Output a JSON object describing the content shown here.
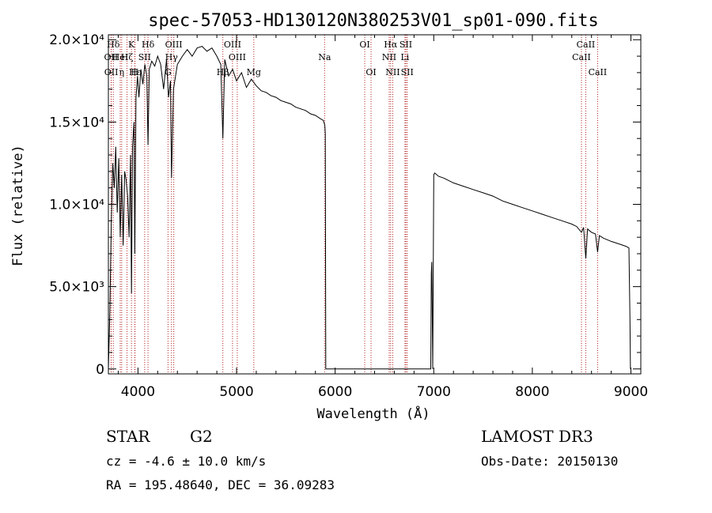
{
  "chart_data": {
    "type": "line",
    "title": "spec-57053-HD130120N380253V01_sp01-090.fits",
    "xlabel": "Wavelength (Å)",
    "ylabel": "Flux (relative)",
    "xlim": [
      3700,
      9100
    ],
    "ylim": [
      -300,
      20300
    ],
    "x_ticks": [
      {
        "value": 4000,
        "label": "4000"
      },
      {
        "value": 5000,
        "label": "5000"
      },
      {
        "value": 6000,
        "label": "6000"
      },
      {
        "value": 7000,
        "label": "7000"
      },
      {
        "value": 8000,
        "label": "8000"
      },
      {
        "value": 9000,
        "label": "9000"
      }
    ],
    "y_ticks": [
      {
        "value": 0,
        "label": "0"
      },
      {
        "value": 5000,
        "label": "5.0×10³"
      },
      {
        "value": 10000,
        "label": "1.0×10⁴"
      },
      {
        "value": 15000,
        "label": "1.5×10⁴"
      },
      {
        "value": 20000,
        "label": "2.0×10⁴"
      }
    ],
    "series": [
      {
        "name": "spectrum",
        "x": [
          3700,
          3715,
          3730,
          3745,
          3760,
          3775,
          3790,
          3805,
          3820,
          3835,
          3850,
          3865,
          3880,
          3895,
          3910,
          3925,
          3934,
          3945,
          3960,
          3968,
          3980,
          3995,
          4010,
          4030,
          4050,
          4070,
          4090,
          4102,
          4115,
          4140,
          4170,
          4200,
          4230,
          4260,
          4290,
          4310,
          4330,
          4340,
          4360,
          4400,
          4450,
          4500,
          4550,
          4600,
          4650,
          4700,
          4750,
          4800,
          4840,
          4861,
          4880,
          4920,
          4960,
          5000,
          5050,
          5100,
          5150,
          5200,
          5250,
          5300,
          5350,
          5400,
          5450,
          5500,
          5550,
          5600,
          5650,
          5700,
          5750,
          5800,
          5850,
          5880,
          5895,
          5900,
          5905,
          6100,
          6300,
          6500,
          6700,
          6900,
          6970,
          6975,
          6980,
          6990,
          7000,
          7010,
          7050,
          7100,
          7200,
          7300,
          7400,
          7500,
          7600,
          7700,
          7800,
          7900,
          8000,
          8100,
          8200,
          8300,
          8400,
          8450,
          8498,
          8520,
          8542,
          8560,
          8600,
          8640,
          8662,
          8680,
          8720,
          8760,
          8800,
          8850,
          8900,
          8950,
          8980,
          8990,
          8995
        ],
        "y": [
          0,
          3500,
          9000,
          12500,
          11000,
          13500,
          9500,
          12800,
          8000,
          11800,
          7500,
          12000,
          11500,
          10500,
          8000,
          13000,
          4600,
          13500,
          15000,
          7000,
          16500,
          17800,
          16500,
          18200,
          17300,
          18500,
          17800,
          13600,
          18200,
          18700,
          18400,
          19000,
          18500,
          17000,
          18800,
          16500,
          17500,
          11600,
          17000,
          18500,
          19000,
          19400,
          19000,
          19500,
          19600,
          19300,
          19500,
          19000,
          18500,
          14000,
          18800,
          17800,
          18200,
          17500,
          18000,
          17100,
          17600,
          17200,
          16900,
          16800,
          16600,
          16500,
          16300,
          16200,
          16100,
          15900,
          15800,
          15700,
          15500,
          15400,
          15200,
          15100,
          14800,
          14300,
          0,
          0,
          0,
          0,
          0,
          0,
          0,
          5800,
          6500,
          0,
          11800,
          11900,
          11700,
          11600,
          11300,
          11100,
          10900,
          10700,
          10500,
          10200,
          10000,
          9800,
          9600,
          9400,
          9200,
          9000,
          8800,
          8650,
          8300,
          8600,
          6700,
          8500,
          8300,
          8200,
          7100,
          8100,
          7950,
          7850,
          7750,
          7650,
          7550,
          7450,
          7350,
          3000,
          0
        ]
      }
    ],
    "spectral_lines": [
      {
        "name": "Hδ",
        "wl": 3750,
        "row": 0
      },
      {
        "name": "OII",
        "wl": 3727,
        "row": 1
      },
      {
        "name": "OII",
        "wl": 3729,
        "row": 2
      },
      {
        "name": "Hζ",
        "wl": 3889,
        "row": 1
      },
      {
        "name": "Hε",
        "wl": 3970,
        "row": 2
      },
      {
        "name": "K",
        "wl": 3934,
        "row": 0
      },
      {
        "name": "H",
        "wl": 3968,
        "row": 2
      },
      {
        "name": "HeI",
        "wl": 3820,
        "row": 1
      },
      {
        "name": "SII",
        "wl": 4068,
        "row": 1
      },
      {
        "name": "Hδ",
        "wl": 4102,
        "row": 0
      },
      {
        "name": "η",
        "wl": 3835,
        "row": 2
      },
      {
        "name": "OIII",
        "wl": 4363,
        "row": 0
      },
      {
        "name": "Hγ",
        "wl": 4340,
        "row": 1
      },
      {
        "name": "G",
        "wl": 4305,
        "row": 2
      },
      {
        "name": "Hβ",
        "wl": 4861,
        "row": 2
      },
      {
        "name": "OIII",
        "wl": 4959,
        "row": 0
      },
      {
        "name": "OIII",
        "wl": 5007,
        "row": 1
      },
      {
        "name": "Mg",
        "wl": 5175,
        "row": 2
      },
      {
        "name": "Na",
        "wl": 5893,
        "row": 1
      },
      {
        "name": "OI",
        "wl": 6300,
        "row": 0
      },
      {
        "name": "OI",
        "wl": 6364,
        "row": 2
      },
      {
        "name": "Hα",
        "wl": 6563,
        "row": 0
      },
      {
        "name": "NII",
        "wl": 6548,
        "row": 1
      },
      {
        "name": "NII",
        "wl": 6584,
        "row": 2
      },
      {
        "name": "SII",
        "wl": 6717,
        "row": 0
      },
      {
        "name": "Li",
        "wl": 6708,
        "row": 1
      },
      {
        "name": "SII",
        "wl": 6731,
        "row": 2
      },
      {
        "name": "CaII",
        "wl": 8542,
        "row": 0
      },
      {
        "name": "CaII",
        "wl": 8498,
        "row": 1
      },
      {
        "name": "CaII",
        "wl": 8662,
        "row": 2
      }
    ]
  },
  "info": {
    "object_class": "STAR",
    "subclass": "G2",
    "redshift": "cz = -4.6 ± 10.0 km/s",
    "coords": "RA = 195.48640, DEC =  36.09283",
    "survey": "LAMOST DR3",
    "obs_date": "Obs-Date: 20150130"
  },
  "colors": {
    "line": "#000000",
    "marker_lines": "#b22222",
    "background": "#ffffff"
  }
}
